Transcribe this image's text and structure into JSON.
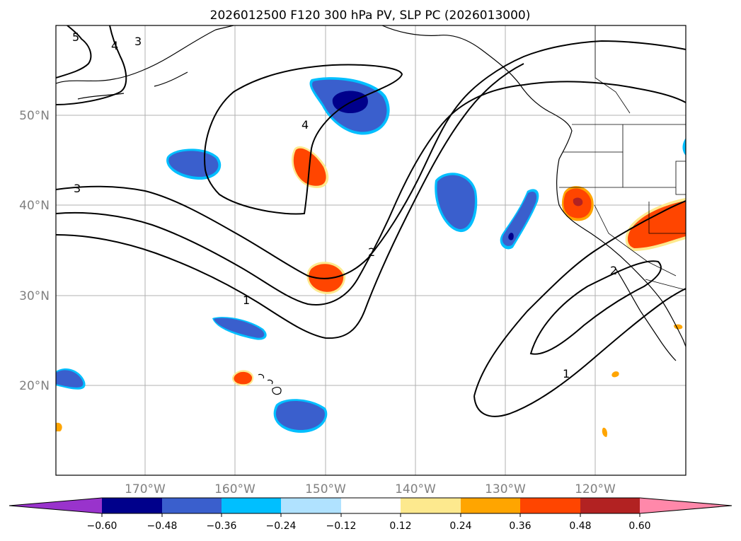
{
  "title": "2026012500 F120 300 hPa PV, SLP PC (2026013000)",
  "map": {
    "latitude_labels": [
      "50°N",
      "40°N",
      "30°N",
      "20°N"
    ],
    "longitude_labels": [
      "170°W",
      "160°W",
      "150°W",
      "140°W",
      "130°W",
      "120°W"
    ],
    "contour_labels": [
      "5",
      "4",
      "3",
      "4",
      "3",
      "2",
      "1",
      "2",
      "1"
    ],
    "colors": {
      "land_outline": "#000000",
      "gridline": "#b0b0b0",
      "contour": "#000000"
    }
  },
  "colorbar": {
    "tick_labels": [
      "−0.60",
      "−0.48",
      "−0.36",
      "−0.24",
      "−0.12",
      "0.12",
      "0.24",
      "0.36",
      "0.48",
      "0.60"
    ],
    "colors": [
      "#9933cc",
      "#00008b",
      "#3a5fcd",
      "#00bfff",
      "#b0e2ff",
      "#ffffff",
      "#fde98e",
      "#ffa500",
      "#ff4500",
      "#b22222",
      "#ff88aa"
    ]
  }
}
